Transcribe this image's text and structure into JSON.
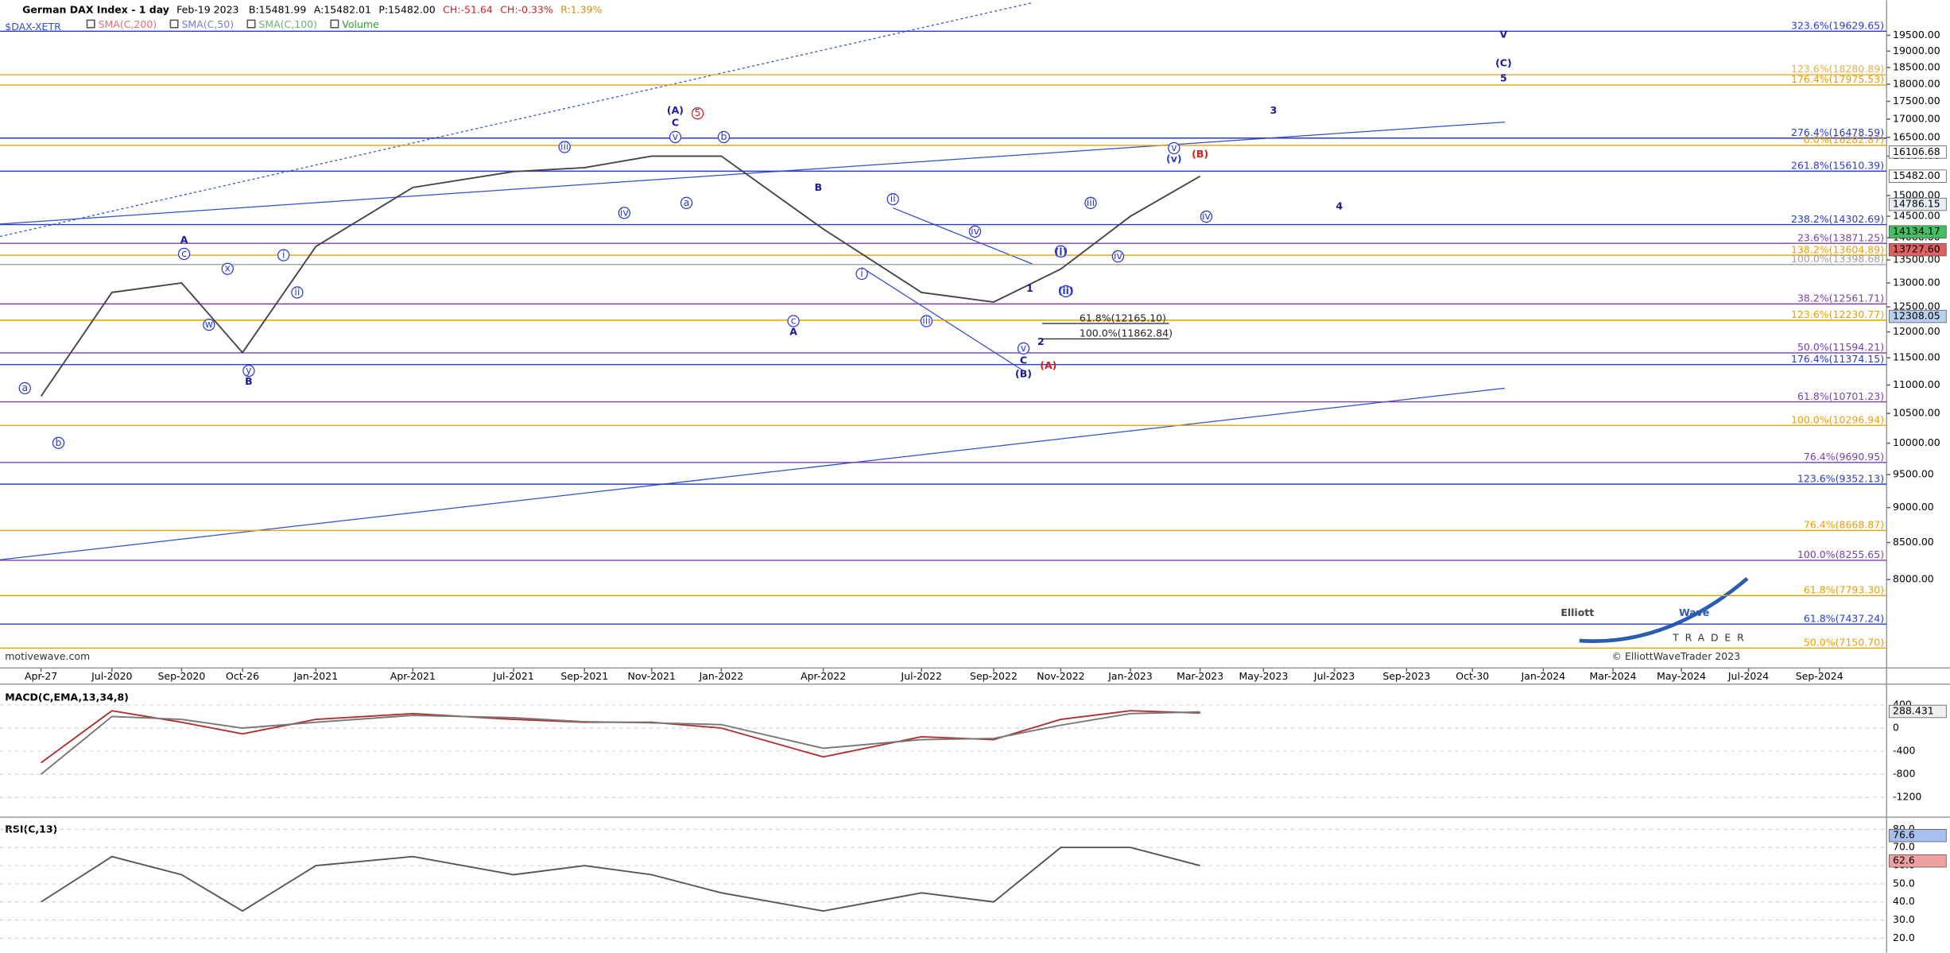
{
  "header": {
    "date": "Feb-19 2023",
    "quotes": [
      {
        "text": "B:15481.99",
        "color": "#000000"
      },
      {
        "text": "A:15482.01",
        "color": "#000000"
      },
      {
        "text": "P:15482.00",
        "color": "#000000"
      },
      {
        "text": "CH:-51.64",
        "color": "#d02020"
      },
      {
        "text": "CH:-0.33%",
        "color": "#d02020"
      },
      {
        "text": "R:1.39%",
        "color": "#e08a00"
      }
    ],
    "symbol": "$DAX-XETR",
    "studies": [
      {
        "text": "SMA(C,200)",
        "color": "#e07070"
      },
      {
        "text": "SMA(C,50)",
        "color": "#7080d0"
      },
      {
        "text": "SMA(C,100)",
        "color": "#70b070"
      },
      {
        "text": "Volume",
        "color": "#30a030"
      }
    ]
  },
  "chart_data": [
    {
      "type": "line",
      "title": "German DAX Index - 1 day",
      "log_scale": true,
      "categories": [
        "Apr-27",
        "Jul-2020",
        "Sep-2020",
        "Oct-26",
        "Jan-2021",
        "Apr-2021",
        "Jul-2021",
        "Sep-2021",
        "Nov-2021",
        "Jan-2022",
        "Apr-2022",
        "Jul-2022",
        "Sep-2022",
        "Nov-2022",
        "Jan-2023",
        "Mar-2023",
        "May-2023",
        "Jul-2023",
        "Sep-2023",
        "Oct-30",
        "Jan-2024",
        "Mar-2024",
        "May-2024",
        "Jul-2024",
        "Sep-2024"
      ],
      "series": [
        {
          "color": "#444444",
          "values": [
            10800,
            12800,
            13000,
            11600,
            13800,
            15200,
            15600,
            15700,
            16000,
            16000,
            14200,
            12800,
            12600,
            13300,
            14500,
            15482,
            null,
            null,
            null,
            null,
            null,
            null,
            null,
            null,
            null
          ]
        }
      ],
      "ylim": [
        6950,
        20650
      ],
      "yticks": [
        {
          "value": 8000,
          "label": "8000.00"
        },
        {
          "value": 8500,
          "label": "8500.00"
        },
        {
          "value": 9000,
          "label": "9000.00"
        },
        {
          "value": 9500,
          "label": "9500.00"
        },
        {
          "value": 10000,
          "label": "10000.00"
        },
        {
          "value": 10500,
          "label": "10500.00"
        },
        {
          "value": 11000,
          "label": "11000.00"
        },
        {
          "value": 11500,
          "label": "11500.00"
        },
        {
          "value": 12000,
          "label": "12000.00"
        },
        {
          "value": 12500,
          "label": "12500.00"
        },
        {
          "value": 13000,
          "label": "13000.00"
        },
        {
          "value": 13500,
          "label": "13500.00"
        },
        {
          "value": 14000,
          "label": "14000.00"
        },
        {
          "value": 14500,
          "label": "14500.00"
        },
        {
          "value": 15000,
          "label": "15000.00"
        },
        {
          "value": 16000,
          "label": "16000.00"
        },
        {
          "value": 16500,
          "label": "16500.00"
        },
        {
          "value": 17000,
          "label": "17000.00"
        },
        {
          "value": 17500,
          "label": "17500.00"
        },
        {
          "value": 18000,
          "label": "18000.00"
        },
        {
          "value": 18500,
          "label": "18500.00"
        },
        {
          "value": 19000,
          "label": "19000.00"
        },
        {
          "value": 19500,
          "label": "19500.00"
        }
      ],
      "levels": [
        {
          "value": 19629.65,
          "label": "323.6%(19629.65)",
          "color": "#2a3bd0"
        },
        {
          "value": 18280.89,
          "label": "123.6%(18280.89)",
          "color": "#e8b040"
        },
        {
          "value": 17975.53,
          "label": "176.4%(17975.53)",
          "color": "#e8a000"
        },
        {
          "value": 16478.59,
          "label": "276.4%(16478.59)",
          "color": "#2a3bd0"
        },
        {
          "value": 16282.87,
          "label": "0.0%(16282.87)",
          "color": "#e8a000"
        },
        {
          "value": 15610.39,
          "label": "261.8%(15610.39)",
          "color": "#2a3bd0"
        },
        {
          "value": 14302.69,
          "label": "238.2%(14302.69)",
          "color": "#2a3bd0"
        },
        {
          "value": 13871.25,
          "label": "23.6%(13871.25)",
          "color": "#7b3fb0"
        },
        {
          "value": 13604.89,
          "label": "138.2%(13604.89)",
          "color": "#e8a000"
        },
        {
          "value": 13398.68,
          "label": "100.0%(13398.68)",
          "color": "#a0a0a0"
        },
        {
          "value": 12561.71,
          "label": "38.2%(12561.71)",
          "color": "#7b3fb0"
        },
        {
          "value": 12230.77,
          "label": "123.6%(12230.77)",
          "color": "#e8a000"
        },
        {
          "value": 11594.21,
          "label": "50.0%(11594.21)",
          "color": "#7b3fb0"
        },
        {
          "value": 11374.15,
          "label": "176.4%(11374.15)",
          "color": "#2a3bd0"
        },
        {
          "value": 10701.23,
          "label": "61.8%(10701.23)",
          "color": "#7b3fb0"
        },
        {
          "value": 10296.94,
          "label": "100.0%(10296.94)",
          "color": "#e8a000"
        },
        {
          "value": 9690.95,
          "label": "76.4%(9690.95)",
          "color": "#7b3fb0"
        },
        {
          "value": 9352.13,
          "label": "123.6%(9352.13)",
          "color": "#2a3bd0"
        },
        {
          "value": 8668.87,
          "label": "76.4%(8668.87)",
          "color": "#e8a000"
        },
        {
          "value": 8255.65,
          "label": "100.0%(8255.65)",
          "color": "#7b3fb0"
        },
        {
          "value": 7793.3,
          "label": "61.8%(7793.30)",
          "color": "#e8a000"
        },
        {
          "value": 7437.24,
          "label": "61.8%(7437.24)",
          "color": "#2a3bd0"
        },
        {
          "value": 7150.7,
          "label": "50.0%(7150.70)",
          "color": "#e8a000"
        }
      ],
      "swing_levels": [
        {
          "value": 12165.1,
          "label": "61.8%(12165.10)",
          "color": "#222222"
        },
        {
          "value": 11862.84,
          "label": "100.0%(11862.84)",
          "color": "#222222"
        }
      ],
      "price_markers": [
        {
          "value": 16106.68,
          "label": "16106.68",
          "color": "#ffffff"
        },
        {
          "value": 15482.0,
          "label": "15482.00",
          "color": "#ffffff"
        },
        {
          "value": 14786.15,
          "label": "14786.15",
          "color": "#e8ecf8"
        },
        {
          "value": 14134.17,
          "label": "14134.17",
          "color": "#40c060"
        },
        {
          "value": 13727.6,
          "label": "13727.60",
          "color": "#e06060"
        },
        {
          "value": 12308.05,
          "label": "12308.05",
          "color": "#b8d0f0"
        }
      ],
      "wave_labels": [
        {
          "text": "(A)",
          "color": "#1a1a9a",
          "circled": false
        },
        {
          "text": "C",
          "color": "#1a1a9a",
          "circled": false
        },
        {
          "text": "5",
          "color": "#d02020",
          "circled": true
        },
        {
          "text": "B",
          "color": "#1a1a9a",
          "circled": false
        },
        {
          "text": "A",
          "color": "#1a1a9a",
          "circled": false
        },
        {
          "text": "(B)",
          "color": "#1a1a9a",
          "circled": false
        },
        {
          "text": "C",
          "color": "#1a1a9a",
          "circled": false
        },
        {
          "text": "(A)",
          "color": "#d02020",
          "circled": false
        },
        {
          "text": "1",
          "color": "#1a1a9a",
          "circled": false
        },
        {
          "text": "2",
          "color": "#1a1a9a",
          "circled": false
        },
        {
          "text": "3",
          "color": "#1a1a9a",
          "circled": false
        },
        {
          "text": "4",
          "color": "#1a1a9a",
          "circled": false
        },
        {
          "text": "5",
          "color": "#1a1a9a",
          "circled": false
        },
        {
          "text": "(C)",
          "color": "#1a1a9a",
          "circled": false
        },
        {
          "text": "V",
          "color": "#1a1a9a",
          "circled": false
        },
        {
          "text": "(B)",
          "color": "#d02020",
          "circled": false
        },
        {
          "text": "A",
          "color": "#1a1a9a",
          "circled": false
        },
        {
          "text": "B",
          "color": "#1a1a9a",
          "circled": false
        },
        {
          "text": "iii",
          "color": "#2a3bd0",
          "circled": true
        },
        {
          "text": "iv",
          "color": "#2a3bd0",
          "circled": true
        },
        {
          "text": "ii",
          "color": "#2a3bd0",
          "circled": true
        },
        {
          "text": "iv",
          "color": "#2a3bd0",
          "circled": true
        },
        {
          "text": "i",
          "color": "#2a3bd0",
          "circled": true
        },
        {
          "text": "iii",
          "color": "#2a3bd0",
          "circled": true
        },
        {
          "text": "v",
          "color": "#2a3bd0",
          "circled": true
        },
        {
          "text": "iii",
          "color": "#2a3bd0",
          "circled": true
        },
        {
          "text": "iv",
          "color": "#2a3bd0",
          "circled": true
        },
        {
          "text": "v",
          "color": "#2a3bd0",
          "circled": true
        },
        {
          "text": "iv",
          "color": "#2a3bd0",
          "circled": true
        },
        {
          "text": "i",
          "color": "#2a3bd0",
          "circled": true
        },
        {
          "text": "ii",
          "color": "#2a3bd0",
          "circled": true
        },
        {
          "text": "a",
          "color": "#2a3bd0",
          "circled": true
        },
        {
          "text": "b",
          "color": "#2a3bd0",
          "circled": true
        },
        {
          "text": "c",
          "color": "#2a3bd0",
          "circled": true
        },
        {
          "text": "x",
          "color": "#2a3bd0",
          "circled": true
        },
        {
          "text": "w",
          "color": "#2a3bd0",
          "circled": true
        },
        {
          "text": "y",
          "color": "#2a3bd0",
          "circled": true
        },
        {
          "text": "i",
          "color": "#2a3bd0",
          "circled": true
        },
        {
          "text": "ii",
          "color": "#2a3bd0",
          "circled": true
        },
        {
          "text": "a",
          "color": "#2a3bd0",
          "circled": true
        },
        {
          "text": "b",
          "color": "#2a3bd0",
          "circled": true
        },
        {
          "text": "c",
          "color": "#2a3bd0",
          "circled": true
        },
        {
          "text": "v",
          "color": "#2a3bd0",
          "circled": true
        },
        {
          "text": "(v)",
          "color": "#2a3bd0",
          "circled": false
        },
        {
          "text": "(i)",
          "color": "#2a3bd0",
          "circled": false
        },
        {
          "text": "(ii)",
          "color": "#2a3bd0",
          "circled": false
        }
      ]
    },
    {
      "type": "line",
      "title": "MACD(C,EMA,13,34,8)",
      "series": [
        {
          "color": "#b03030",
          "values": [
            -600,
            300,
            100,
            -100,
            150,
            250,
            150,
            100,
            100,
            0,
            -500,
            -150,
            -200,
            150,
            300,
            260,
            null,
            null,
            null,
            null,
            null,
            null,
            null,
            null,
            null
          ]
        },
        {
          "color": "#777777",
          "values": [
            -800,
            200,
            150,
            0,
            100,
            220,
            180,
            110,
            90,
            60,
            -350,
            -200,
            -180,
            50,
            250,
            280,
            null,
            null,
            null,
            null,
            null,
            null,
            null,
            null,
            null
          ]
        }
      ],
      "ylim": [
        -1500,
        760
      ],
      "yticks": [
        400,
        0,
        -400,
        -800,
        -1200
      ],
      "grid": true,
      "price_markers": [
        {
          "value": 288.431,
          "label": "288.431",
          "color": "#f0f0f0"
        }
      ]
    },
    {
      "type": "line",
      "title": "RSI(C,13)",
      "series": [
        {
          "color": "#555555",
          "values": [
            40,
            65,
            55,
            35,
            60,
            65,
            55,
            60,
            55,
            45,
            35,
            45,
            40,
            70,
            70,
            60,
            null,
            null,
            null,
            null,
            null,
            null,
            null,
            null,
            null
          ]
        }
      ],
      "ylim": [
        12,
        86
      ],
      "yticks": [
        {
          "value": 80,
          "label": "80.0"
        },
        {
          "value": 70,
          "label": "70.0"
        },
        {
          "value": 60,
          "label": "60.0"
        },
        {
          "value": 50,
          "label": "50.0"
        },
        {
          "value": 40,
          "label": "40.0"
        },
        {
          "value": 30,
          "label": "30.0"
        },
        {
          "value": 20,
          "label": "20.0"
        }
      ],
      "grid": true,
      "price_markers": [
        {
          "value": 76.6,
          "label": "76.6",
          "color": "#a8c0f0"
        },
        {
          "value": 62.6,
          "label": "62.6",
          "color": "#f0a0a0"
        }
      ]
    }
  ],
  "footer": {
    "source": "motivewave.com",
    "copyright": "© ElliottWaveTrader 2023"
  },
  "logo": {
    "word1": "Elliott",
    "word2": "Wave",
    "word3": "TRADER"
  }
}
